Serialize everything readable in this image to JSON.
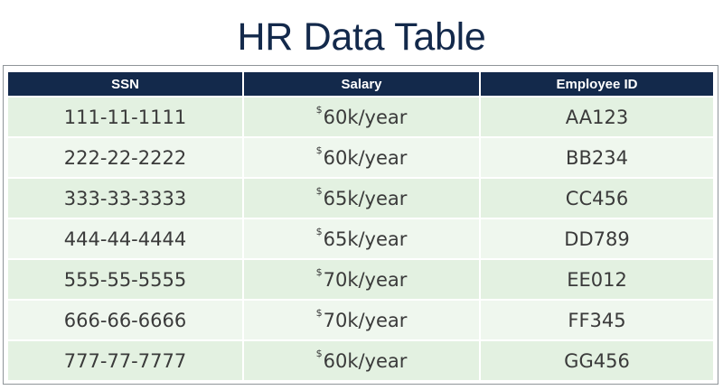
{
  "title": "HR Data Table",
  "table": {
    "headers": [
      "SSN",
      "Salary",
      "Employee ID"
    ],
    "currency_symbol": "$",
    "rows": [
      {
        "ssn": "111-11-1111",
        "salary": "60k/year",
        "employee_id": "AA123"
      },
      {
        "ssn": "222-22-2222",
        "salary": "60k/year",
        "employee_id": "BB234"
      },
      {
        "ssn": "333-33-3333",
        "salary": "65k/year",
        "employee_id": "CC456"
      },
      {
        "ssn": "444-44-4444",
        "salary": "65k/year",
        "employee_id": "DD789"
      },
      {
        "ssn": "555-55-5555",
        "salary": "70k/year",
        "employee_id": "EE012"
      },
      {
        "ssn": "666-66-6666",
        "salary": "70k/year",
        "employee_id": "FF345"
      },
      {
        "ssn": "777-77-7777",
        "salary": "60k/year",
        "employee_id": "GG456"
      }
    ]
  },
  "colors": {
    "header_bg": "#13294b",
    "header_text": "#ffffff",
    "title_text": "#13294b",
    "row_odd_bg": "#e3f1e1",
    "row_even_bg": "#eff7ee",
    "cell_text": "#3a3a3a"
  }
}
